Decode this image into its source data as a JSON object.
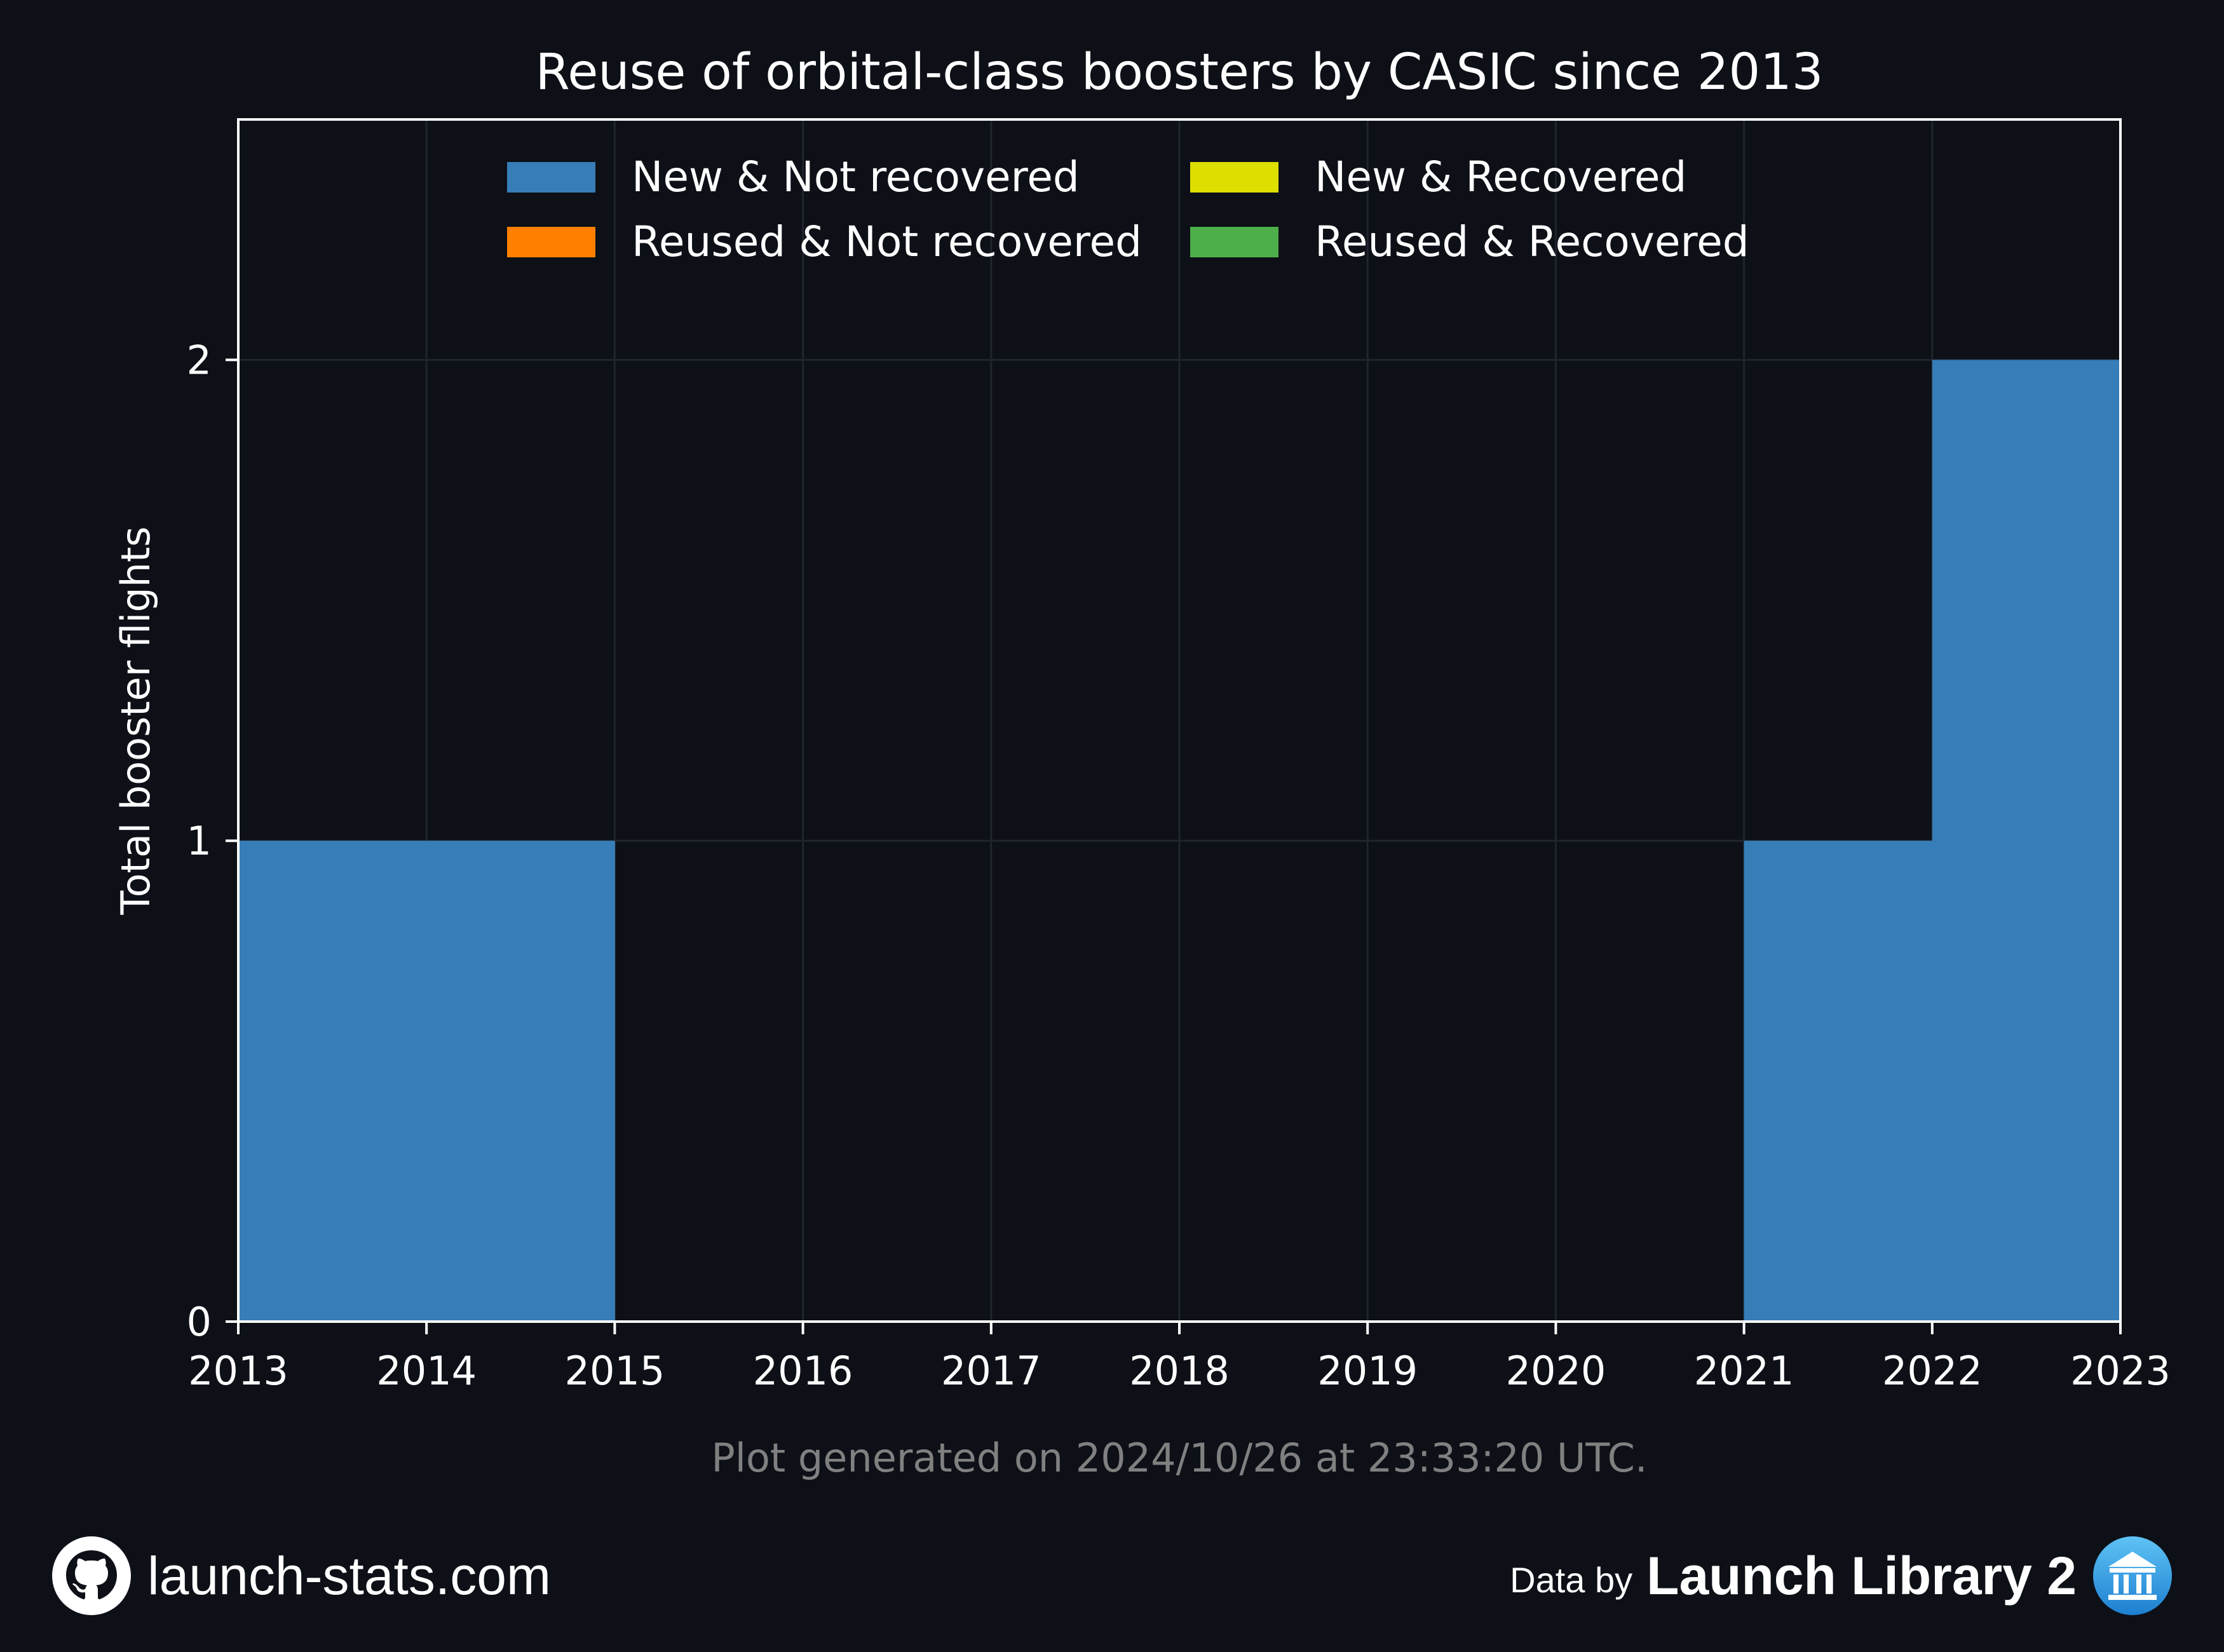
{
  "chart_data": {
    "type": "bar",
    "title": "Reuse of orbital-class boosters by CASIC since 2013",
    "ylabel": "Total booster flights",
    "xlabel": "",
    "x_ticks": [
      "2013",
      "2014",
      "2015",
      "2016",
      "2017",
      "2018",
      "2019",
      "2020",
      "2021",
      "2022",
      "2023"
    ],
    "y_ticks": [
      "0",
      "1",
      "2"
    ],
    "xlim": [
      2013,
      2023
    ],
    "ylim": [
      0,
      2.5
    ],
    "categories": [
      "2013",
      "2014",
      "2015",
      "2016",
      "2017",
      "2018",
      "2019",
      "2020",
      "2021",
      "2022"
    ],
    "stacked": true,
    "series": [
      {
        "name": "New & Not recovered",
        "color": "#377eb8",
        "values": [
          1,
          1,
          0,
          0,
          0,
          0,
          0,
          0,
          1,
          2
        ]
      },
      {
        "name": "New & Recovered",
        "color": "#dede00",
        "values": [
          0,
          0,
          0,
          0,
          0,
          0,
          0,
          0,
          0,
          0
        ]
      },
      {
        "name": "Reused & Not recovered",
        "color": "#ff7f00",
        "values": [
          0,
          0,
          0,
          0,
          0,
          0,
          0,
          0,
          0,
          0
        ]
      },
      {
        "name": "Reused & Recovered",
        "color": "#4daf4a",
        "values": [
          0,
          0,
          0,
          0,
          0,
          0,
          0,
          0,
          0,
          0
        ]
      }
    ],
    "legend_order": [
      0,
      2,
      1,
      3
    ],
    "legend_position": "top-center",
    "grid": true
  },
  "generated_note": "Plot generated on 2024/10/26 at 23:33:20 UTC.",
  "footer": {
    "site": "launch-stats.com",
    "data_by": "Data by",
    "source": "Launch Library 2",
    "github_icon": "github-icon",
    "source_icon": "launch-library-icon"
  },
  "colors": {
    "background": "#0d1017",
    "axis": "#ffffff",
    "grid": "#1f242d",
    "note": "#808080"
  }
}
